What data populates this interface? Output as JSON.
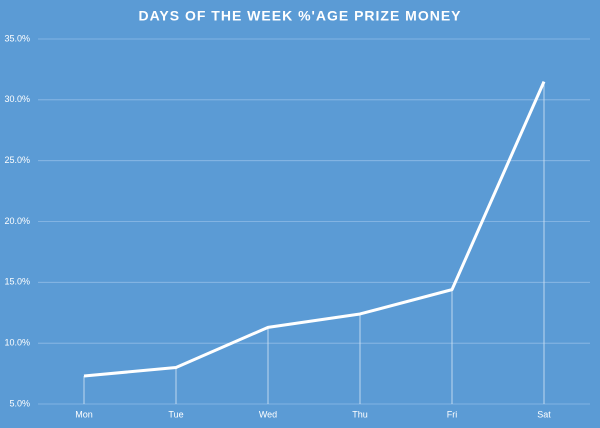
{
  "chart_data": {
    "type": "line",
    "title": "DAYS OF THE WEEK %'AGE PRIZE MONEY",
    "categories": [
      "Mon",
      "Tue",
      "Wed",
      "Thu",
      "Fri",
      "Sat"
    ],
    "values": [
      7.3,
      8.0,
      11.3,
      12.4,
      14.4,
      31.5
    ],
    "color": "#ffffff",
    "ylim": [
      5,
      35
    ],
    "yticks": [
      {
        "value": 5,
        "label": "5.0%"
      },
      {
        "value": 10,
        "label": "10.0%"
      },
      {
        "value": 15,
        "label": "15.0%"
      },
      {
        "value": 20,
        "label": "20.0%"
      },
      {
        "value": 25,
        "label": "25.0%"
      },
      {
        "value": 30,
        "label": "30.0%"
      },
      {
        "value": 35,
        "label": "35.0%"
      }
    ],
    "grid": true,
    "drop_lines": true
  }
}
